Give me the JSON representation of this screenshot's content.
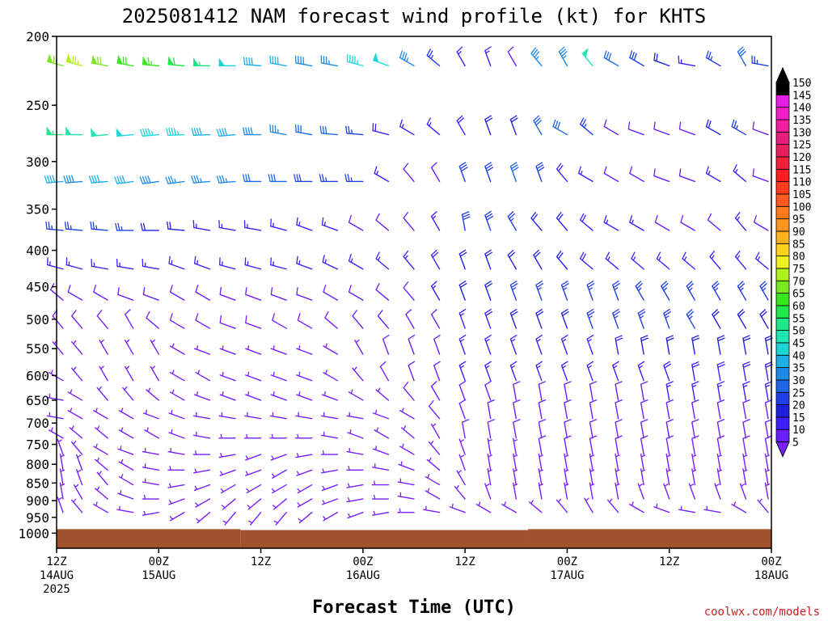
{
  "chart_data": {
    "type": "wind_barb_time_height",
    "title": "2025081412 NAM forecast wind profile (kt) for KHTS",
    "xlabel": "Forecast Time (UTC)",
    "credit": "coolwx.com/models",
    "y_axis": {
      "unit": "hPa",
      "scale": "log",
      "range": [
        1050,
        200
      ],
      "ticks": [
        200,
        250,
        300,
        350,
        400,
        450,
        500,
        550,
        600,
        650,
        700,
        750,
        800,
        850,
        900,
        950,
        1000
      ]
    },
    "x_axis": {
      "range_hours": [
        0,
        84
      ],
      "ticks": [
        {
          "hour": 0,
          "line1": "12Z",
          "line2": "14AUG",
          "line3": "2025"
        },
        {
          "hour": 12,
          "line1": "00Z",
          "line2": "15AUG",
          "line3": ""
        },
        {
          "hour": 24,
          "line1": "12Z",
          "line2": "",
          "line3": ""
        },
        {
          "hour": 36,
          "line1": "00Z",
          "line2": "16AUG",
          "line3": ""
        },
        {
          "hour": 48,
          "line1": "12Z",
          "line2": "",
          "line3": ""
        },
        {
          "hour": 60,
          "line1": "00Z",
          "line2": "17AUG",
          "line3": ""
        },
        {
          "hour": 72,
          "line1": "12Z",
          "line2": "",
          "line3": ""
        },
        {
          "hour": 84,
          "line1": "00Z",
          "line2": "18AUG",
          "line3": ""
        }
      ]
    },
    "terrain": {
      "color": "#a0522d",
      "surface_pressure_hpa": [
        {
          "from_hour": 0,
          "to_hour": 21.6,
          "p": 987
        },
        {
          "from_hour": 21.6,
          "to_hour": 55.4,
          "p": 990
        },
        {
          "from_hour": 55.4,
          "to_hour": 84,
          "p": 987
        }
      ]
    },
    "colorbar": {
      "unit": "kt",
      "labels": [
        5,
        10,
        15,
        20,
        25,
        30,
        35,
        40,
        45,
        50,
        55,
        60,
        65,
        70,
        75,
        80,
        85,
        90,
        95,
        100,
        105,
        110,
        115,
        120,
        125,
        130,
        135,
        140,
        145,
        150
      ],
      "colors": [
        "#7a1fff",
        "#6a1fff",
        "#3b1fff",
        "#1f1fe0",
        "#1f3fe6",
        "#1f66e6",
        "#1f8ae6",
        "#1fb0e6",
        "#1fd6d6",
        "#1fe6b0",
        "#1fe68a",
        "#1fe64a",
        "#3ae61f",
        "#7ae61f",
        "#b0f01f",
        "#f0f01f",
        "#ffd21f",
        "#ffb21f",
        "#ff951f",
        "#ff7a1f",
        "#ff5a1f",
        "#ff3a1f",
        "#ff1f1f",
        "#f01f3a",
        "#e61f5a",
        "#e61f7a",
        "#f01fa0",
        "#f01fc8",
        "#e61fe6",
        "#000000"
      ]
    },
    "hours": [
      0,
      3,
      6,
      9,
      12,
      15,
      18,
      21,
      24,
      27,
      30,
      33,
      36,
      39,
      42,
      45,
      48,
      51,
      54,
      57,
      60,
      63,
      66,
      69,
      72,
      75,
      78,
      81,
      84
    ],
    "rows": [
      {
        "p": 220,
        "dir": [
          285,
          285,
          280,
          280,
          275,
          275,
          270,
          270,
          275,
          280,
          280,
          280,
          285,
          290,
          300,
          310,
          330,
          340,
          330,
          320,
          330,
          320,
          300,
          300,
          290,
          280,
          300,
          330,
          280
        ],
        "spd": [
          70,
          75,
          70,
          68,
          65,
          62,
          55,
          48,
          42,
          40,
          38,
          35,
          45,
          48,
          35,
          25,
          15,
          15,
          12,
          35,
          35,
          50,
          30,
          28,
          20,
          15,
          25,
          30,
          25
        ]
      },
      {
        "p": 275,
        "dir": [
          270,
          270,
          265,
          265,
          265,
          268,
          268,
          265,
          270,
          280,
          280,
          275,
          275,
          285,
          300,
          310,
          330,
          340,
          340,
          330,
          300,
          310,
          300,
          290,
          290,
          290,
          300,
          300,
          290
        ],
        "spd": [
          55,
          52,
          50,
          48,
          45,
          45,
          42,
          40,
          38,
          35,
          32,
          30,
          25,
          18,
          15,
          15,
          18,
          22,
          20,
          30,
          30,
          25,
          12,
          12,
          10,
          12,
          20,
          25,
          10
        ]
      },
      {
        "p": 320,
        "dir": [
          265,
          265,
          265,
          262,
          262,
          262,
          265,
          265,
          270,
          270,
          270,
          270,
          270,
          300,
          320,
          330,
          340,
          340,
          340,
          340,
          320,
          300,
          300,
          300,
          290,
          290,
          300,
          310,
          290
        ],
        "spd": [
          40,
          38,
          40,
          40,
          38,
          36,
          36,
          35,
          32,
          30,
          28,
          26,
          25,
          15,
          12,
          12,
          28,
          28,
          30,
          28,
          18,
          15,
          12,
          10,
          10,
          10,
          15,
          15,
          10
        ]
      },
      {
        "p": 375,
        "dir": [
          275,
          275,
          275,
          270,
          270,
          275,
          280,
          280,
          280,
          285,
          290,
          290,
          300,
          310,
          320,
          330,
          350,
          340,
          330,
          320,
          320,
          310,
          300,
          300,
          300,
          300,
          310,
          320,
          300
        ],
        "spd": [
          25,
          25,
          25,
          25,
          22,
          20,
          15,
          15,
          15,
          15,
          15,
          15,
          12,
          12,
          12,
          15,
          28,
          28,
          25,
          22,
          20,
          18,
          15,
          15,
          12,
          12,
          12,
          15,
          12
        ]
      },
      {
        "p": 425,
        "dir": [
          285,
          285,
          280,
          280,
          280,
          290,
          290,
          285,
          285,
          285,
          290,
          295,
          300,
          310,
          320,
          330,
          340,
          340,
          330,
          330,
          320,
          310,
          310,
          310,
          310,
          310,
          320,
          320,
          310
        ],
        "spd": [
          15,
          15,
          15,
          15,
          15,
          15,
          15,
          15,
          15,
          15,
          15,
          15,
          15,
          15,
          15,
          18,
          22,
          22,
          22,
          22,
          20,
          18,
          15,
          15,
          15,
          15,
          15,
          15,
          15
        ]
      },
      {
        "p": 470,
        "dir": [
          310,
          300,
          300,
          290,
          290,
          300,
          300,
          290,
          290,
          290,
          290,
          300,
          300,
          310,
          320,
          330,
          340,
          340,
          340,
          340,
          340,
          340,
          340,
          330,
          330,
          330,
          330,
          330,
          330
        ],
        "spd": [
          10,
          10,
          10,
          10,
          10,
          10,
          10,
          10,
          10,
          10,
          10,
          10,
          10,
          12,
          12,
          15,
          22,
          22,
          25,
          25,
          25,
          25,
          25,
          25,
          25,
          25,
          25,
          25,
          25
        ]
      },
      {
        "p": 515,
        "dir": [
          320,
          320,
          320,
          330,
          310,
          300,
          300,
          290,
          290,
          300,
          300,
          310,
          320,
          320,
          330,
          330,
          340,
          340,
          340,
          340,
          340,
          340,
          340,
          340,
          340,
          330,
          330,
          330,
          330
        ],
        "spd": [
          8,
          8,
          8,
          8,
          8,
          8,
          8,
          8,
          8,
          8,
          8,
          8,
          10,
          10,
          10,
          12,
          15,
          18,
          20,
          22,
          22,
          25,
          25,
          25,
          25,
          25,
          22,
          22,
          20
        ]
      },
      {
        "p": 560,
        "dir": [
          320,
          320,
          330,
          330,
          330,
          300,
          290,
          290,
          290,
          290,
          290,
          300,
          330,
          340,
          340,
          340,
          340,
          340,
          340,
          340,
          340,
          340,
          350,
          350,
          350,
          350,
          350,
          350,
          350
        ],
        "spd": [
          5,
          5,
          5,
          5,
          5,
          5,
          5,
          5,
          5,
          5,
          5,
          5,
          5,
          8,
          10,
          12,
          15,
          15,
          15,
          15,
          15,
          15,
          18,
          20,
          20,
          20,
          20,
          20,
          20
        ]
      },
      {
        "p": 610,
        "dir": [
          300,
          320,
          330,
          330,
          330,
          300,
          300,
          290,
          290,
          290,
          290,
          300,
          320,
          330,
          340,
          340,
          340,
          340,
          340,
          340,
          340,
          340,
          340,
          340,
          340,
          350,
          350,
          350,
          350
        ],
        "spd": [
          5,
          5,
          5,
          5,
          5,
          5,
          5,
          5,
          5,
          5,
          5,
          5,
          5,
          8,
          10,
          12,
          15,
          15,
          15,
          15,
          15,
          15,
          15,
          15,
          18,
          18,
          18,
          18,
          18
        ]
      },
      {
        "p": 650,
        "dir": [
          280,
          300,
          320,
          320,
          310,
          300,
          290,
          290,
          290,
          290,
          290,
          290,
          300,
          310,
          320,
          330,
          340,
          340,
          350,
          350,
          350,
          350,
          350,
          350,
          350,
          350,
          350,
          350,
          350
        ],
        "spd": [
          5,
          5,
          5,
          5,
          5,
          5,
          5,
          5,
          5,
          5,
          5,
          5,
          5,
          5,
          8,
          10,
          12,
          12,
          12,
          12,
          12,
          12,
          12,
          12,
          15,
          15,
          15,
          15,
          15
        ]
      },
      {
        "p": 690,
        "dir": [
          280,
          300,
          300,
          300,
          290,
          290,
          280,
          280,
          280,
          280,
          280,
          280,
          280,
          290,
          300,
          320,
          340,
          350,
          350,
          350,
          350,
          350,
          350,
          350,
          350,
          350,
          350,
          350,
          350
        ],
        "spd": [
          5,
          5,
          5,
          5,
          5,
          5,
          5,
          5,
          5,
          5,
          5,
          5,
          5,
          5,
          5,
          8,
          10,
          10,
          10,
          10,
          10,
          10,
          10,
          10,
          12,
          12,
          12,
          12,
          12
        ]
      },
      {
        "p": 735,
        "dir": [
          300,
          310,
          310,
          300,
          300,
          290,
          280,
          270,
          270,
          270,
          270,
          280,
          290,
          300,
          310,
          330,
          350,
          350,
          350,
          350,
          350,
          350,
          350,
          350,
          350,
          350,
          350,
          350,
          350
        ],
        "spd": [
          5,
          5,
          5,
          5,
          5,
          5,
          5,
          5,
          5,
          5,
          5,
          5,
          5,
          5,
          5,
          5,
          8,
          8,
          8,
          8,
          8,
          8,
          8,
          10,
          10,
          10,
          10,
          10,
          10
        ]
      },
      {
        "p": 775,
        "dir": [
          340,
          320,
          300,
          290,
          280,
          280,
          270,
          260,
          250,
          250,
          260,
          270,
          280,
          290,
          300,
          320,
          340,
          350,
          350,
          350,
          350,
          350,
          350,
          350,
          350,
          350,
          350,
          350,
          350
        ],
        "spd": [
          5,
          5,
          5,
          5,
          5,
          5,
          5,
          5,
          5,
          5,
          5,
          5,
          5,
          5,
          5,
          5,
          5,
          5,
          5,
          8,
          8,
          8,
          8,
          8,
          8,
          8,
          8,
          8,
          8
        ]
      },
      {
        "p": 815,
        "dir": [
          350,
          340,
          310,
          300,
          280,
          270,
          260,
          250,
          250,
          240,
          250,
          260,
          270,
          280,
          290,
          310,
          340,
          350,
          350,
          350,
          350,
          350,
          350,
          350,
          350,
          350,
          350,
          350,
          350
        ],
        "spd": [
          5,
          5,
          5,
          5,
          5,
          5,
          5,
          5,
          5,
          5,
          5,
          5,
          5,
          5,
          5,
          5,
          5,
          5,
          5,
          5,
          5,
          5,
          5,
          5,
          5,
          5,
          5,
          5,
          5
        ]
      },
      {
        "p": 855,
        "dir": [
          350,
          340,
          320,
          300,
          280,
          260,
          250,
          240,
          240,
          240,
          240,
          250,
          260,
          270,
          280,
          300,
          330,
          350,
          350,
          350,
          350,
          350,
          350,
          350,
          350,
          350,
          350,
          350,
          350
        ],
        "spd": [
          5,
          5,
          5,
          5,
          5,
          5,
          5,
          5,
          5,
          5,
          5,
          5,
          5,
          5,
          5,
          5,
          5,
          5,
          5,
          5,
          5,
          5,
          5,
          5,
          5,
          5,
          5,
          5,
          5
        ]
      },
      {
        "p": 895,
        "dir": [
          350,
          330,
          310,
          290,
          270,
          250,
          240,
          230,
          230,
          230,
          240,
          250,
          260,
          270,
          280,
          300,
          320,
          340,
          350,
          350,
          350,
          350,
          350,
          340,
          340,
          340,
          340,
          340,
          350
        ],
        "spd": [
          5,
          5,
          5,
          5,
          5,
          5,
          5,
          5,
          5,
          5,
          5,
          5,
          5,
          5,
          5,
          5,
          5,
          5,
          5,
          5,
          5,
          5,
          5,
          5,
          5,
          5,
          5,
          5,
          5
        ]
      },
      {
        "p": 935,
        "dir": [
          340,
          320,
          300,
          280,
          260,
          240,
          230,
          220,
          220,
          220,
          230,
          240,
          250,
          260,
          270,
          280,
          290,
          300,
          300,
          310,
          320,
          330,
          320,
          300,
          290,
          280,
          280,
          300,
          320
        ],
        "spd": [
          5,
          5,
          5,
          5,
          5,
          5,
          5,
          5,
          5,
          5,
          5,
          5,
          5,
          5,
          5,
          5,
          5,
          5,
          5,
          5,
          5,
          5,
          5,
          5,
          5,
          5,
          5,
          5,
          5
        ]
      }
    ]
  }
}
